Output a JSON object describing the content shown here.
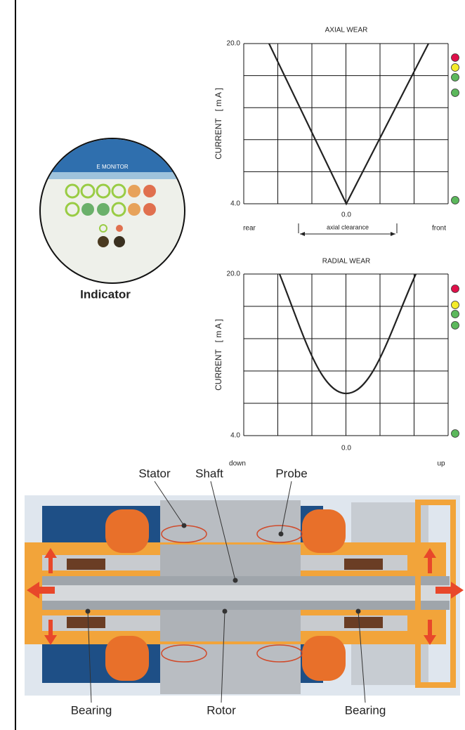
{
  "indicator": {
    "brand": "E MONITOR",
    "caption": "Indicator"
  },
  "axial_chart": {
    "title": "AXIAL WEAR",
    "y_label": "CURRENT   [ m A ]",
    "y_top": "20.0",
    "y_bottom": "4.0",
    "x_center": "0.0",
    "left_label": "rear",
    "right_label": "front",
    "span_label": "axial clearance"
  },
  "radial_chart": {
    "title": "RADIAL WEAR",
    "y_label": "CURRENT   [ m A ]",
    "y_top": "20.0",
    "y_bottom": "4.0",
    "x_center": "0.0",
    "left_label": "down",
    "right_label": "up"
  },
  "motor": {
    "labels": [
      "Stator",
      "Shaft",
      "Probe",
      "Bearing",
      "Rotor",
      "Bearing"
    ]
  }
}
